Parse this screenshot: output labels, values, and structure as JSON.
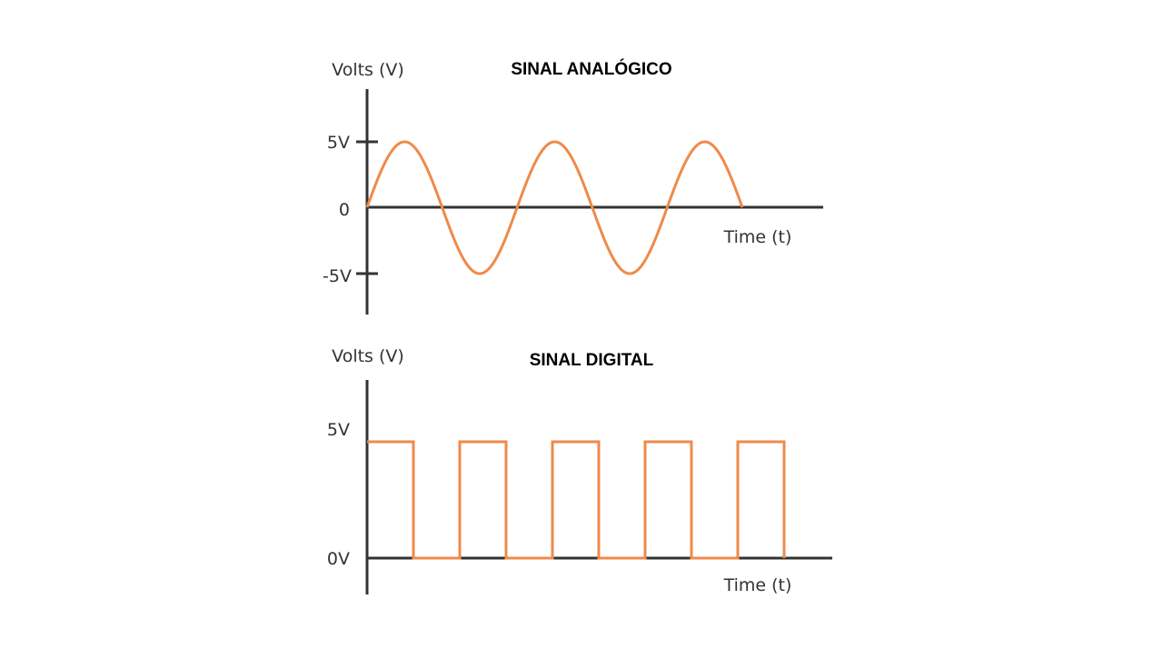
{
  "colors": {
    "signal": "#ef8a4a",
    "axis": "#333333",
    "title": "#000000",
    "background": "#ffffff"
  },
  "chart_data": [
    {
      "type": "line",
      "title": "SINAL ANALÓGICO",
      "ylabel": "Volts (V)",
      "xlabel": "Time (t)",
      "y_ticks": [
        {
          "value": 5,
          "label": "5V"
        },
        {
          "value": 0,
          "label": "0"
        },
        {
          "value": -5,
          "label": "-5V"
        }
      ],
      "ylim": [
        -5,
        5
      ],
      "grid": false,
      "series": [
        {
          "shape": "sine",
          "amplitude": 5,
          "cycles": 2.5,
          "phase_start": 0
        }
      ]
    },
    {
      "type": "line",
      "title": "SINAL DIGITAL",
      "ylabel": "Volts (V)",
      "xlabel": "Time (t)",
      "y_ticks": [
        {
          "value": 5,
          "label": "5V"
        },
        {
          "value": 0,
          "label": "0V"
        }
      ],
      "ylim": [
        0,
        5
      ],
      "grid": false,
      "series": [
        {
          "shape": "square",
          "high": 5,
          "low": 0,
          "pulses": 5,
          "duty": 0.5
        }
      ]
    }
  ]
}
